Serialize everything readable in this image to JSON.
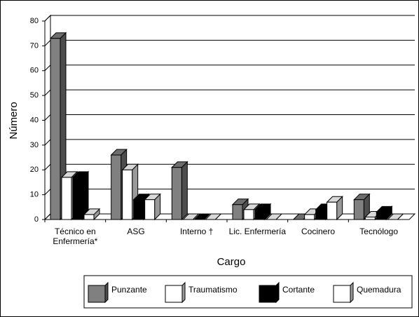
{
  "chart_data": {
    "type": "bar3d",
    "categories": [
      "Técnico en Enfermería*",
      "ASG",
      "Interno †",
      "Lic. Enfermería",
      "Cocinero",
      "Tecnólogo"
    ],
    "series": [
      {
        "name": "Punzante",
        "color": "#808080",
        "values": [
          73,
          26,
          21,
          6,
          0,
          8
        ]
      },
      {
        "name": "Traumatismo",
        "color": "#ffffff",
        "values": [
          17,
          20,
          0,
          4,
          2,
          1
        ]
      },
      {
        "name": "Cortante",
        "color": "#000000",
        "values": [
          17,
          8,
          0,
          4,
          4,
          3
        ]
      },
      {
        "name": "Quemadura",
        "color": "#ffffff",
        "values": [
          2,
          8,
          0,
          0,
          7,
          0
        ]
      }
    ],
    "ylabel": "Número",
    "xlabel": "Cargo",
    "ylim": [
      0,
      80
    ],
    "yticks": [
      0,
      10,
      20,
      30,
      40,
      50,
      60,
      70,
      80
    ],
    "grid": true
  }
}
